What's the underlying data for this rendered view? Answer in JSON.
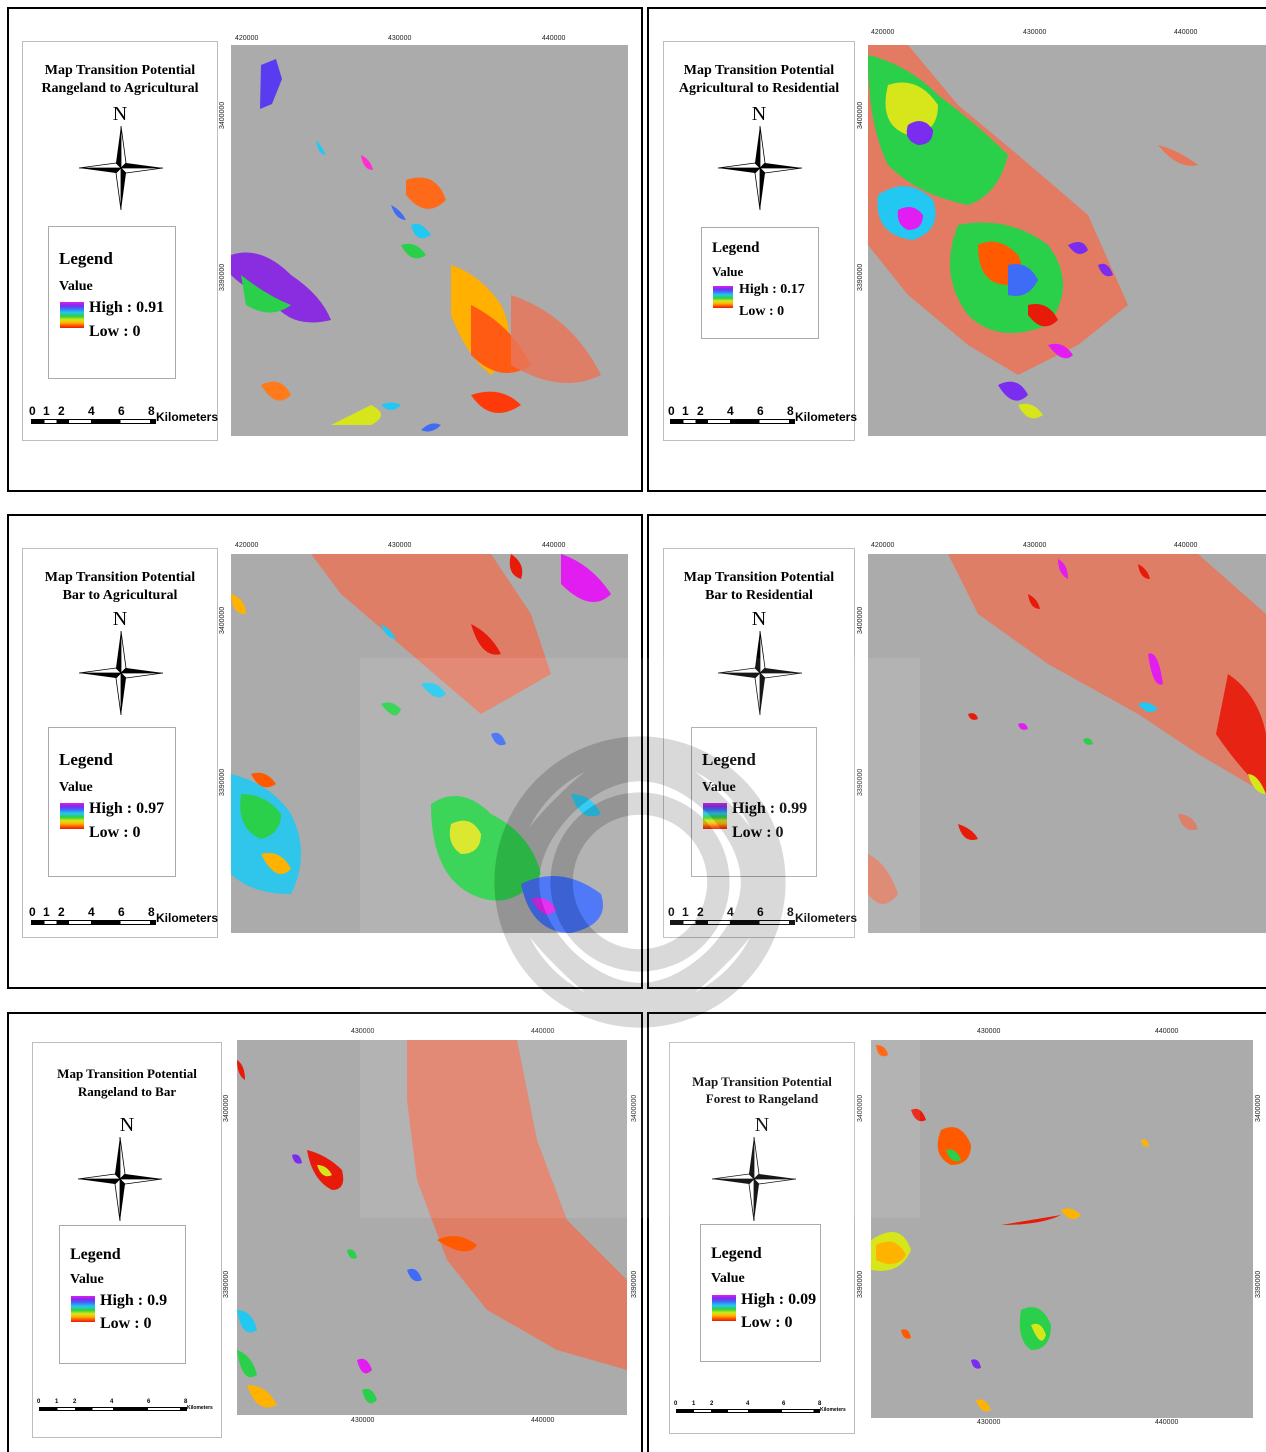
{
  "panels": [
    {
      "id": "p1",
      "title_line1": "Map Transition Potential",
      "title_line2": "Rangeland to Agricultural",
      "north": "N",
      "legend_title": "Legend",
      "legend_value_label": "Value",
      "legend_high": "High : 0.91",
      "legend_low": "Low : 0",
      "scale_numbers": [
        "0",
        "1",
        "2",
        "4",
        "6",
        "8"
      ],
      "scale_unit": "Kilometers",
      "x_ticks": [
        "420000",
        "430000",
        "440000"
      ],
      "y_ticks": [
        "3400000",
        "3390000"
      ]
    },
    {
      "id": "p2",
      "title_line1": "Map Transition Potential",
      "title_line2": "Agricultural to Residential",
      "north": "N",
      "legend_title": "Legend",
      "legend_value_label": "Value",
      "legend_high": "High : 0.17",
      "legend_low": "Low : 0",
      "scale_numbers": [
        "0",
        "1",
        "2",
        "4",
        "6",
        "8"
      ],
      "scale_unit": "Kilometers",
      "x_ticks": [
        "420000",
        "430000",
        "440000"
      ],
      "y_ticks": [
        "3400000",
        "3390000"
      ]
    },
    {
      "id": "p3",
      "title_line1": "Map Transition Potential",
      "title_line2": "Bar  to Agricultural",
      "north": "N",
      "legend_title": "Legend",
      "legend_value_label": "Value",
      "legend_high": "High : 0.97",
      "legend_low": "Low : 0",
      "scale_numbers": [
        "0",
        "1",
        "2",
        "4",
        "6",
        "8"
      ],
      "scale_unit": "Kilometers",
      "x_ticks": [
        "420000",
        "430000",
        "440000"
      ],
      "y_ticks": [
        "3400000",
        "3390000"
      ]
    },
    {
      "id": "p4",
      "title_line1": "Map Transition Potential",
      "title_line2": "Bar  to Residential",
      "north": "N",
      "legend_title": "Legend",
      "legend_value_label": "Value",
      "legend_high": "High : 0.99",
      "legend_low": "Low : 0",
      "scale_numbers": [
        "0",
        "1",
        "2",
        "4",
        "6",
        "8"
      ],
      "scale_unit": "Kilometers",
      "x_ticks": [
        "420000",
        "430000",
        "440000"
      ],
      "y_ticks": [
        "3400000",
        "3390000"
      ]
    },
    {
      "id": "p5",
      "title_line1": "Map Transition Potential",
      "title_line2": "Rangeland  to Bar",
      "north": "N",
      "legend_title": "Legend",
      "legend_value_label": "Value",
      "legend_high": "High : 0.9",
      "legend_low": "Low : 0",
      "scale_numbers": [
        "0",
        "1",
        "2",
        "4",
        "6",
        "8"
      ],
      "scale_unit": "Kilometers",
      "x_ticks": [
        "430000",
        "440000"
      ],
      "y_ticks": [
        "3400000",
        "3390000"
      ]
    },
    {
      "id": "p6",
      "title_line1": "Map Transition Potential",
      "title_line2": "Forest  to Rangeland",
      "north": "N",
      "legend_title": "Legend",
      "legend_value_label": "Value",
      "legend_high": "High : 0.09",
      "legend_low": "Low : 0",
      "scale_numbers": [
        "0",
        "1",
        "2",
        "4",
        "6",
        "8"
      ],
      "scale_unit": "Kilometers",
      "x_ticks": [
        "430000",
        "440000"
      ],
      "y_ticks": [
        "3400000",
        "3390000"
      ]
    }
  ],
  "colors": {
    "map_background": "#ababab",
    "low": "#e81a0a",
    "high": "#e11df1",
    "residual": "#e8765a"
  }
}
